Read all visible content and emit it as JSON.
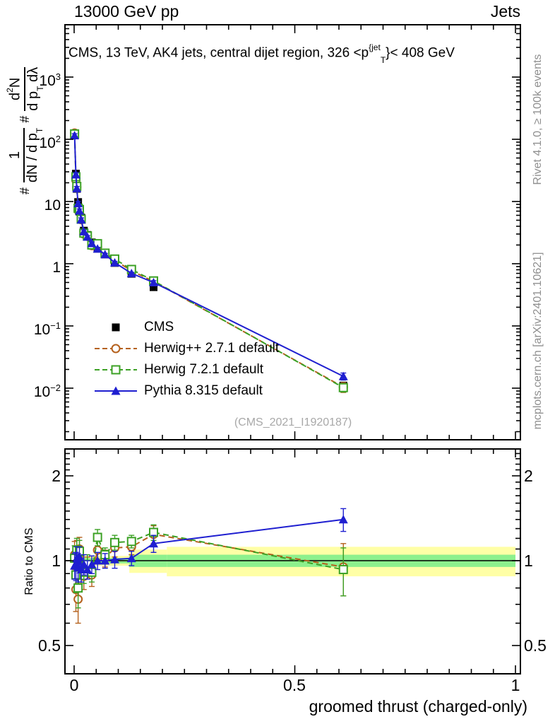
{
  "header": {
    "left": "13000 GeV pp",
    "right": "Jets"
  },
  "main_panel": {
    "title": {
      "prefix": "CMS, 13 TeV, AK4 jets, central dijet region, 326 <p",
      "sup": "{jet",
      "sub": "T",
      "suffix": "}< 408 GeV"
    },
    "watermark": "(CMS_2021_I1920187)",
    "ylabel": {
      "hash1": "#",
      "frac1_num": "1",
      "frac1_den": "dN / d p",
      "frac1_den_sub": "T",
      "hash2": "#",
      "frac2_num": "d",
      "frac2_num_sup": "2",
      "frac2_num_post": "N",
      "frac2_den": "d p",
      "frac2_den_sub": "T",
      "frac2_den_post": " dλ"
    },
    "yticks": [
      {
        "base": "10",
        "exp": "3",
        "value": 1000
      },
      {
        "base": "10",
        "exp": "2",
        "value": 100
      },
      {
        "base": "10",
        "exp": "",
        "value": 10
      },
      {
        "base": "1",
        "exp": "",
        "value": 1
      },
      {
        "base": "10",
        "exp": "−1",
        "value": 0.1
      },
      {
        "base": "10",
        "exp": "−2",
        "value": 0.01
      }
    ]
  },
  "ratio_panel": {
    "ylabel": "Ratio to CMS",
    "yticks": [
      "2",
      "1",
      "0.5"
    ],
    "ytick_values": [
      2,
      1,
      0.5
    ]
  },
  "xaxis": {
    "title": "groomed thrust (charged-only)",
    "tick_labels": [
      "0",
      "0.5",
      "1"
    ],
    "tick_values": [
      0,
      0.5,
      1
    ]
  },
  "side_notes": {
    "rivet": "Rivet 4.1.0, ≥ 100k events",
    "mcplots": "mcplots.cern.ch [arXiv:2401.10621]"
  },
  "colors": {
    "cms": "#000000",
    "herwigpp": "#b5611d",
    "herwig": "#3ca125",
    "pythia": "#1f1fd0",
    "band_yellow": "#ffffa6",
    "band_green": "#8df08d",
    "gray_text": "#8f8f8f"
  },
  "chart_data": {
    "type": "line",
    "title": "CMS, 13 TeV, AK4 jets, central dijet region, 326 < pT(jet) < 408 GeV",
    "xlabel": "groomed thrust (charged-only)",
    "ylabel": "# 1/(dN/dpT) # d2N/(dpT dlambda)",
    "ratio_ylabel": "Ratio to CMS",
    "xlim": [
      0,
      1
    ],
    "ylog": true,
    "ylim": [
      0.0015,
      7000
    ],
    "ratio_log": true,
    "ratio_lim": [
      0.4,
      2.5
    ],
    "x": [
      0.001,
      0.004,
      0.006,
      0.009,
      0.012,
      0.016,
      0.022,
      0.03,
      0.04,
      0.053,
      0.07,
      0.092,
      0.13,
      0.18,
      0.61
    ],
    "series": [
      {
        "name": "CMS",
        "color": "#000000",
        "marker": "square-filled",
        "line": "none",
        "values": [
          120,
          28,
          16,
          9.8,
          6.9,
          5.5,
          3.4,
          2.9,
          2.2,
          1.74,
          1.41,
          1.03,
          0.69,
          0.42,
          0.011
        ],
        "err_frac": [
          0.05,
          0.06,
          0.06,
          0.06,
          0.06,
          0.06,
          0.05,
          0.05,
          0.05,
          0.05,
          0.05,
          0.05,
          0.05,
          0.06,
          0.1
        ]
      },
      {
        "name": "Herwig++ 2.7.1 default",
        "color": "#b5611d",
        "marker": "circle-open",
        "line": "dashed",
        "values": [
          126,
          22,
          17,
          7.2,
          7.6,
          5.1,
          3.0,
          2.75,
          1.95,
          1.9,
          1.44,
          1.14,
          0.77,
          0.52,
          0.0104
        ],
        "err_frac": [
          0.09,
          0.1,
          0.09,
          0.1,
          0.09,
          0.08,
          0.07,
          0.06,
          0.06,
          0.06,
          0.05,
          0.06,
          0.05,
          0.06,
          0.18
        ],
        "ratio": [
          1.05,
          0.79,
          1.06,
          0.73,
          1.1,
          0.93,
          0.88,
          0.95,
          0.89,
          1.09,
          1.02,
          1.11,
          1.12,
          1.24,
          0.95
        ],
        "ratio_err": [
          0.12,
          0.13,
          0.12,
          0.13,
          0.11,
          0.1,
          0.09,
          0.08,
          0.08,
          0.08,
          0.07,
          0.08,
          0.07,
          0.09,
          0.2
        ]
      },
      {
        "name": "Herwig 7.2.1 default",
        "color": "#3ca125",
        "marker": "square-open",
        "line": "dashed",
        "values": [
          122,
          25,
          17.5,
          7.8,
          7.45,
          5.2,
          3.1,
          2.8,
          2.0,
          2.1,
          1.48,
          1.19,
          0.81,
          0.53,
          0.0102
        ],
        "err_frac": [
          0.08,
          0.09,
          0.08,
          0.09,
          0.08,
          0.07,
          0.06,
          0.06,
          0.05,
          0.06,
          0.05,
          0.05,
          0.05,
          0.06,
          0.15
        ],
        "ratio": [
          1.02,
          0.89,
          1.09,
          0.8,
          1.08,
          0.95,
          0.91,
          0.97,
          0.91,
          1.21,
          1.05,
          1.16,
          1.17,
          1.26,
          0.93
        ],
        "ratio_err": [
          0.11,
          0.12,
          0.11,
          0.12,
          0.1,
          0.09,
          0.08,
          0.08,
          0.07,
          0.08,
          0.06,
          0.07,
          0.06,
          0.08,
          0.18
        ]
      },
      {
        "name": "Pythia 8.315 default",
        "color": "#1f1fd0",
        "marker": "triangle-filled",
        "line": "solid",
        "values": [
          115,
          27,
          16.3,
          9.3,
          7.1,
          5.1,
          3.3,
          2.7,
          2.13,
          1.74,
          1.41,
          1.04,
          0.7,
          0.5,
          0.0155
        ],
        "err_frac": [
          0.07,
          0.08,
          0.07,
          0.08,
          0.07,
          0.07,
          0.06,
          0.05,
          0.05,
          0.05,
          0.04,
          0.05,
          0.04,
          0.07,
          0.13
        ],
        "ratio": [
          0.96,
          0.96,
          1.02,
          0.95,
          1.03,
          0.93,
          0.97,
          0.93,
          0.97,
          1.0,
          1.0,
          1.01,
          1.02,
          1.15,
          1.4
        ],
        "ratio_err": [
          0.1,
          0.11,
          0.1,
          0.11,
          0.09,
          0.09,
          0.08,
          0.07,
          0.07,
          0.07,
          0.06,
          0.07,
          0.06,
          0.08,
          0.13
        ]
      }
    ],
    "bands": {
      "center": 1.0,
      "segments": [
        {
          "x1": 0.0,
          "x2": 0.02,
          "yellow": 0.07,
          "green": 0.035
        },
        {
          "x1": 0.02,
          "x2": 0.125,
          "yellow": 0.04,
          "green": 0.022
        },
        {
          "x1": 0.125,
          "x2": 0.21,
          "yellow": 0.095,
          "green": 0.05
        },
        {
          "x1": 0.21,
          "x2": 1.0,
          "yellow": 0.12,
          "green": 0.05
        }
      ]
    },
    "legend_position": "middle-left"
  }
}
